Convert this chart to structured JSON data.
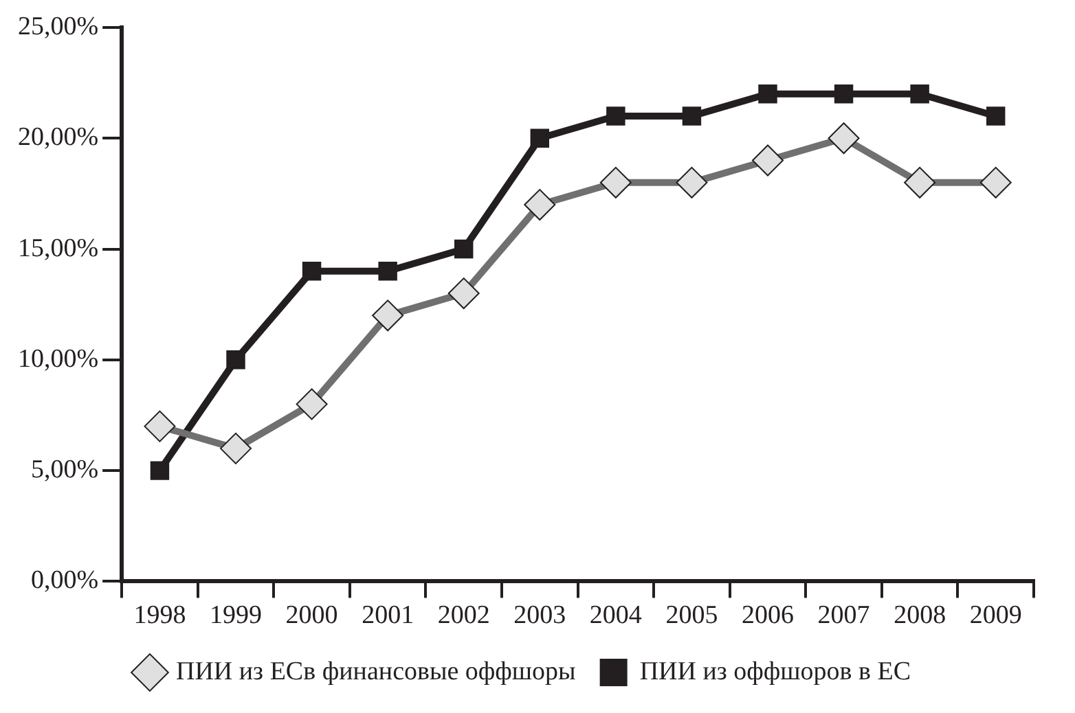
{
  "chart_data": {
    "type": "line",
    "categories": [
      "1998",
      "1999",
      "2000",
      "2001",
      "2002",
      "2003",
      "2004",
      "2005",
      "2006",
      "2007",
      "2008",
      "2009"
    ],
    "series": [
      {
        "name": "ПИИ из ЕСв финансовые оффшоры",
        "color": "#707070",
        "marker": "diamond",
        "values": [
          7,
          6,
          8,
          12,
          13,
          17,
          18,
          18,
          19,
          20,
          18,
          18
        ]
      },
      {
        "name": "ПИИ из оффшоров в ЕС",
        "color": "#231f20",
        "marker": "square",
        "values": [
          5,
          10,
          14,
          14,
          15,
          20,
          21,
          21,
          22,
          22,
          22,
          21
        ]
      }
    ],
    "ylim": [
      0,
      25
    ],
    "yticks": [
      {
        "value": 0,
        "label": "0,00%"
      },
      {
        "value": 5,
        "label": "5,00%"
      },
      {
        "value": 10,
        "label": "10,00%"
      },
      {
        "value": 15,
        "label": "15,00%"
      },
      {
        "value": 20,
        "label": "20,00%"
      },
      {
        "value": 25,
        "label": "25,00%"
      }
    ],
    "grid": false,
    "legend": "bottom",
    "line_style": "solid"
  }
}
